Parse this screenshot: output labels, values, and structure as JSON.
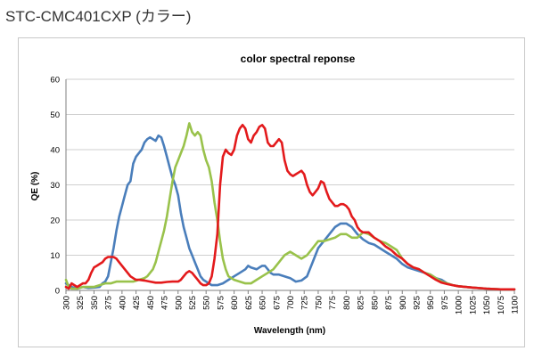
{
  "page": {
    "heading": "STC-CMC401CXP (カラー)"
  },
  "chart_data": {
    "type": "line",
    "title": "color spectral reponse",
    "xlabel": "Wavelength (nm)",
    "ylabel": "QE (%)",
    "xlim": [
      300,
      1100
    ],
    "ylim": [
      0,
      60
    ],
    "x_ticks": [
      300,
      325,
      350,
      375,
      400,
      425,
      450,
      475,
      500,
      525,
      550,
      575,
      600,
      625,
      650,
      675,
      700,
      725,
      750,
      775,
      800,
      825,
      850,
      875,
      900,
      925,
      950,
      975,
      1000,
      1025,
      1050,
      1075,
      1100
    ],
    "y_ticks": [
      0,
      10,
      20,
      30,
      40,
      50,
      60
    ],
    "grid": "horizontal",
    "legend": "none",
    "series": [
      {
        "color": "#4a7ebb",
        "points": [
          [
            300,
            2
          ],
          [
            305,
            1.5
          ],
          [
            310,
            1
          ],
          [
            320,
            0.5
          ],
          [
            330,
            1
          ],
          [
            340,
            0.7
          ],
          [
            350,
            0.8
          ],
          [
            360,
            1
          ],
          [
            365,
            2
          ],
          [
            370,
            2.5
          ],
          [
            375,
            4
          ],
          [
            380,
            8
          ],
          [
            385,
            12
          ],
          [
            390,
            17
          ],
          [
            395,
            21
          ],
          [
            400,
            24
          ],
          [
            405,
            27
          ],
          [
            410,
            30
          ],
          [
            415,
            31
          ],
          [
            420,
            36
          ],
          [
            425,
            38
          ],
          [
            430,
            39
          ],
          [
            435,
            40
          ],
          [
            440,
            42
          ],
          [
            445,
            43
          ],
          [
            450,
            43.5
          ],
          [
            455,
            43
          ],
          [
            460,
            42.5
          ],
          [
            465,
            44
          ],
          [
            470,
            43.5
          ],
          [
            475,
            41
          ],
          [
            480,
            38
          ],
          [
            485,
            35
          ],
          [
            490,
            32
          ],
          [
            495,
            30
          ],
          [
            500,
            27
          ],
          [
            505,
            22
          ],
          [
            510,
            18
          ],
          [
            515,
            15
          ],
          [
            520,
            12
          ],
          [
            525,
            10
          ],
          [
            530,
            8
          ],
          [
            535,
            6
          ],
          [
            540,
            4
          ],
          [
            545,
            3
          ],
          [
            550,
            2.5
          ],
          [
            555,
            2
          ],
          [
            560,
            1.5
          ],
          [
            570,
            1.5
          ],
          [
            580,
            2
          ],
          [
            590,
            3
          ],
          [
            600,
            4
          ],
          [
            610,
            5
          ],
          [
            620,
            6
          ],
          [
            625,
            7
          ],
          [
            630,
            6.5
          ],
          [
            640,
            6
          ],
          [
            645,
            6.5
          ],
          [
            650,
            7
          ],
          [
            655,
            7
          ],
          [
            660,
            6
          ],
          [
            665,
            5
          ],
          [
            670,
            4.5
          ],
          [
            680,
            4.5
          ],
          [
            690,
            4
          ],
          [
            700,
            3.5
          ],
          [
            705,
            3
          ],
          [
            710,
            2.5
          ],
          [
            720,
            2.8
          ],
          [
            730,
            4
          ],
          [
            740,
            8
          ],
          [
            750,
            12
          ],
          [
            760,
            14
          ],
          [
            770,
            16
          ],
          [
            780,
            18
          ],
          [
            790,
            19
          ],
          [
            800,
            19
          ],
          [
            810,
            18
          ],
          [
            820,
            16
          ],
          [
            830,
            14.5
          ],
          [
            840,
            13.5
          ],
          [
            850,
            13
          ],
          [
            860,
            12
          ],
          [
            870,
            11
          ],
          [
            880,
            10
          ],
          [
            890,
            9
          ],
          [
            900,
            7.5
          ],
          [
            910,
            6.5
          ],
          [
            920,
            6
          ],
          [
            930,
            5.5
          ],
          [
            940,
            5
          ],
          [
            950,
            4.5
          ],
          [
            960,
            3.5
          ],
          [
            970,
            3
          ],
          [
            980,
            2
          ],
          [
            990,
            1.5
          ],
          [
            1000,
            1.2
          ],
          [
            1025,
            0.8
          ],
          [
            1050,
            0.5
          ],
          [
            1075,
            0.3
          ],
          [
            1100,
            0.3
          ]
        ]
      },
      {
        "color": "#99c24b",
        "points": [
          [
            300,
            3
          ],
          [
            305,
            1
          ],
          [
            310,
            0.5
          ],
          [
            320,
            0.5
          ],
          [
            330,
            1
          ],
          [
            340,
            1
          ],
          [
            350,
            1
          ],
          [
            360,
            1.5
          ],
          [
            370,
            2
          ],
          [
            380,
            2
          ],
          [
            390,
            2.5
          ],
          [
            400,
            2.5
          ],
          [
            410,
            2.5
          ],
          [
            420,
            2.5
          ],
          [
            430,
            3
          ],
          [
            440,
            3.5
          ],
          [
            445,
            4
          ],
          [
            450,
            5
          ],
          [
            455,
            6
          ],
          [
            460,
            8
          ],
          [
            465,
            11
          ],
          [
            470,
            14
          ],
          [
            475,
            17
          ],
          [
            480,
            21
          ],
          [
            485,
            26
          ],
          [
            490,
            31
          ],
          [
            495,
            35
          ],
          [
            500,
            37
          ],
          [
            505,
            39
          ],
          [
            510,
            41
          ],
          [
            515,
            44
          ],
          [
            520,
            47.5
          ],
          [
            525,
            45
          ],
          [
            530,
            44
          ],
          [
            535,
            45
          ],
          [
            540,
            44
          ],
          [
            545,
            40
          ],
          [
            550,
            37
          ],
          [
            555,
            35
          ],
          [
            560,
            31
          ],
          [
            565,
            25
          ],
          [
            570,
            20
          ],
          [
            575,
            14
          ],
          [
            580,
            9
          ],
          [
            585,
            6
          ],
          [
            590,
            4
          ],
          [
            600,
            3
          ],
          [
            610,
            2.5
          ],
          [
            620,
            2
          ],
          [
            630,
            2
          ],
          [
            640,
            3
          ],
          [
            650,
            4
          ],
          [
            660,
            5
          ],
          [
            670,
            6
          ],
          [
            680,
            8
          ],
          [
            690,
            10
          ],
          [
            700,
            11
          ],
          [
            710,
            10
          ],
          [
            720,
            9
          ],
          [
            730,
            10
          ],
          [
            740,
            12
          ],
          [
            750,
            14
          ],
          [
            760,
            14
          ],
          [
            770,
            14.5
          ],
          [
            780,
            15
          ],
          [
            790,
            16
          ],
          [
            800,
            16
          ],
          [
            810,
            15
          ],
          [
            820,
            15
          ],
          [
            830,
            16.5
          ],
          [
            840,
            16
          ],
          [
            850,
            15
          ],
          [
            860,
            14
          ],
          [
            870,
            13.5
          ],
          [
            880,
            12.5
          ],
          [
            890,
            11.5
          ],
          [
            900,
            9
          ],
          [
            910,
            7.5
          ],
          [
            920,
            6.5
          ],
          [
            930,
            6
          ],
          [
            940,
            5
          ],
          [
            950,
            4.5
          ],
          [
            960,
            3.5
          ],
          [
            970,
            2.5
          ],
          [
            980,
            2
          ],
          [
            990,
            1.5
          ],
          [
            1000,
            1.2
          ],
          [
            1025,
            0.8
          ],
          [
            1050,
            0.5
          ],
          [
            1075,
            0.3
          ],
          [
            1100,
            0.3
          ]
        ]
      },
      {
        "color": "#e31a1c",
        "points": [
          [
            300,
            1
          ],
          [
            305,
            0.5
          ],
          [
            310,
            2
          ],
          [
            315,
            1.5
          ],
          [
            320,
            1
          ],
          [
            330,
            2
          ],
          [
            335,
            2
          ],
          [
            340,
            3
          ],
          [
            345,
            5
          ],
          [
            350,
            6.5
          ],
          [
            355,
            7
          ],
          [
            360,
            7.5
          ],
          [
            365,
            8
          ],
          [
            370,
            9
          ],
          [
            375,
            9.5
          ],
          [
            380,
            9.5
          ],
          [
            385,
            9.5
          ],
          [
            390,
            9
          ],
          [
            395,
            8
          ],
          [
            400,
            7
          ],
          [
            405,
            6
          ],
          [
            410,
            5
          ],
          [
            415,
            4
          ],
          [
            420,
            3.5
          ],
          [
            425,
            3
          ],
          [
            430,
            3
          ],
          [
            440,
            2.8
          ],
          [
            450,
            2.5
          ],
          [
            460,
            2.2
          ],
          [
            470,
            2.2
          ],
          [
            480,
            2.4
          ],
          [
            490,
            2.5
          ],
          [
            500,
            2.5
          ],
          [
            505,
            3
          ],
          [
            510,
            4
          ],
          [
            515,
            5
          ],
          [
            520,
            5.5
          ],
          [
            525,
            5
          ],
          [
            530,
            4
          ],
          [
            535,
            3
          ],
          [
            540,
            2
          ],
          [
            545,
            1.5
          ],
          [
            550,
            1.5
          ],
          [
            555,
            2
          ],
          [
            560,
            4
          ],
          [
            565,
            9
          ],
          [
            570,
            16
          ],
          [
            575,
            30
          ],
          [
            580,
            38
          ],
          [
            585,
            40
          ],
          [
            590,
            39
          ],
          [
            595,
            38.5
          ],
          [
            600,
            40
          ],
          [
            605,
            44
          ],
          [
            610,
            46
          ],
          [
            615,
            47
          ],
          [
            620,
            46
          ],
          [
            625,
            43
          ],
          [
            630,
            42
          ],
          [
            635,
            44
          ],
          [
            640,
            45
          ],
          [
            645,
            46.5
          ],
          [
            650,
            47
          ],
          [
            655,
            46
          ],
          [
            660,
            42
          ],
          [
            665,
            41
          ],
          [
            670,
            41
          ],
          [
            675,
            42
          ],
          [
            680,
            43
          ],
          [
            685,
            42
          ],
          [
            690,
            37
          ],
          [
            695,
            34
          ],
          [
            700,
            33
          ],
          [
            705,
            32.5
          ],
          [
            710,
            33
          ],
          [
            715,
            33.5
          ],
          [
            720,
            34
          ],
          [
            725,
            33
          ],
          [
            730,
            30
          ],
          [
            735,
            28
          ],
          [
            740,
            27
          ],
          [
            745,
            28
          ],
          [
            750,
            29
          ],
          [
            755,
            31
          ],
          [
            760,
            30.5
          ],
          [
            765,
            28
          ],
          [
            770,
            26
          ],
          [
            775,
            25
          ],
          [
            780,
            24
          ],
          [
            785,
            24
          ],
          [
            790,
            24.5
          ],
          [
            795,
            24.5
          ],
          [
            800,
            24
          ],
          [
            805,
            23
          ],
          [
            810,
            21
          ],
          [
            815,
            20
          ],
          [
            820,
            18
          ],
          [
            825,
            17
          ],
          [
            830,
            16.5
          ],
          [
            840,
            16.5
          ],
          [
            850,
            15
          ],
          [
            860,
            14
          ],
          [
            870,
            12.5
          ],
          [
            880,
            11.5
          ],
          [
            890,
            10
          ],
          [
            900,
            9
          ],
          [
            910,
            7.5
          ],
          [
            920,
            6.5
          ],
          [
            930,
            6
          ],
          [
            940,
            5
          ],
          [
            950,
            4
          ],
          [
            960,
            3
          ],
          [
            970,
            2.2
          ],
          [
            980,
            1.8
          ],
          [
            990,
            1.5
          ],
          [
            1000,
            1.2
          ],
          [
            1025,
            0.8
          ],
          [
            1050,
            0.5
          ],
          [
            1075,
            0.3
          ],
          [
            1100,
            0.3
          ]
        ]
      }
    ]
  }
}
